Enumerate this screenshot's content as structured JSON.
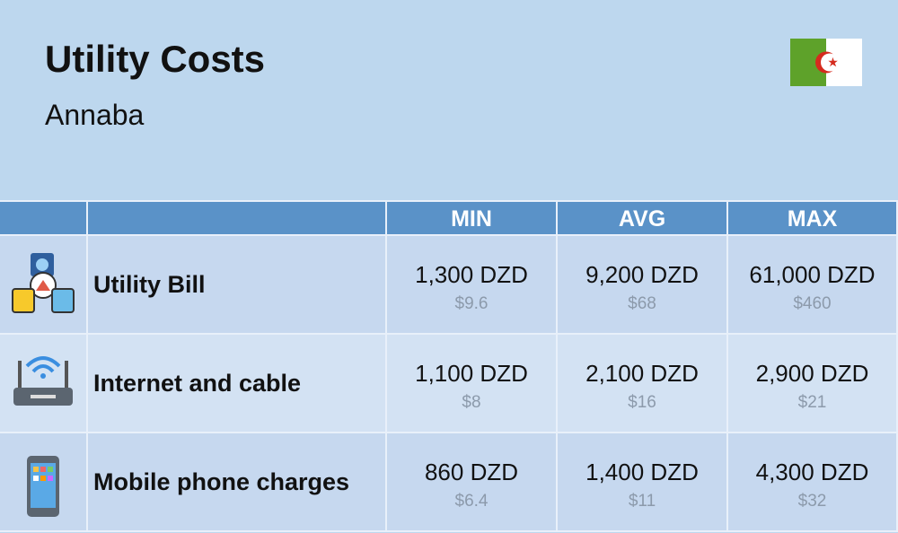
{
  "header": {
    "title": "Utility Costs",
    "subtitle": "Annaba"
  },
  "table": {
    "columns": [
      "MIN",
      "AVG",
      "MAX"
    ],
    "rows": [
      {
        "label": "Utility Bill",
        "cells": [
          {
            "local": "1,300 DZD",
            "usd": "$9.6"
          },
          {
            "local": "9,200 DZD",
            "usd": "$68"
          },
          {
            "local": "61,000 DZD",
            "usd": "$460"
          }
        ]
      },
      {
        "label": "Internet and cable",
        "cells": [
          {
            "local": "1,100 DZD",
            "usd": "$8"
          },
          {
            "local": "2,100 DZD",
            "usd": "$16"
          },
          {
            "local": "2,900 DZD",
            "usd": "$21"
          }
        ]
      },
      {
        "label": "Mobile phone charges",
        "cells": [
          {
            "local": "860 DZD",
            "usd": "$6.4"
          },
          {
            "local": "1,400 DZD",
            "usd": "$11"
          },
          {
            "local": "4,300 DZD",
            "usd": "$32"
          }
        ]
      }
    ]
  }
}
